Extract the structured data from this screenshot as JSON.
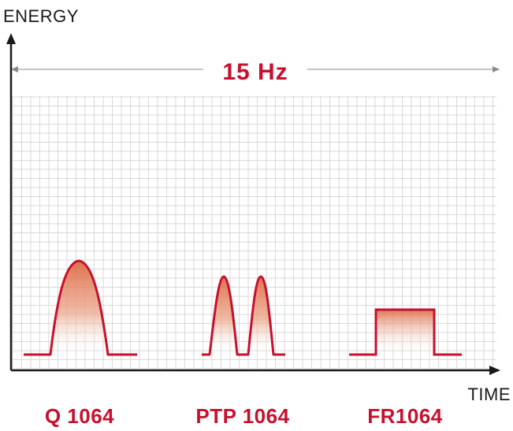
{
  "axes": {
    "y_label": "ENERGY",
    "x_label": "TIME"
  },
  "frequency": {
    "label": "15 Hz"
  },
  "pulses": [
    {
      "name": "Q 1064",
      "shape": "single-gaussian"
    },
    {
      "name": "PTP 1064",
      "shape": "double-pulse"
    },
    {
      "name": "FR1064",
      "shape": "flat-top"
    }
  ],
  "colors": {
    "accent": "#c8102e",
    "axis": "#1a1a1a",
    "grid": "#d9d9d9",
    "arrow_line": "#b3b3b3",
    "fill_top": "#e07a55"
  }
}
